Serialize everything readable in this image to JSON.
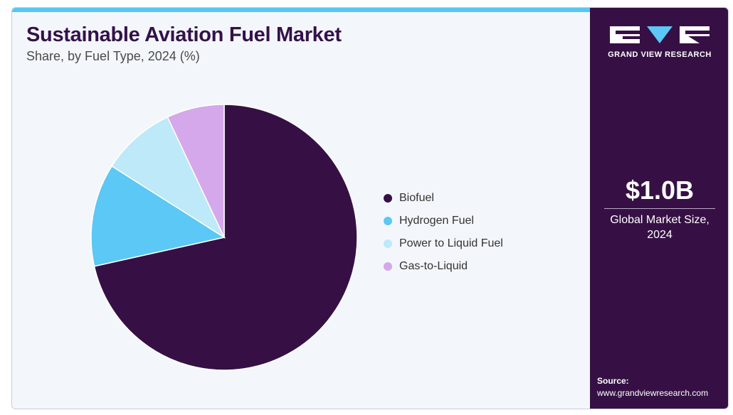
{
  "chart_data": {
    "type": "pie",
    "title": "Sustainable Aviation Fuel Market",
    "subtitle": "Share, by Fuel Type, 2024 (%)",
    "categories": [
      "Biofuel",
      "Hydrogen Fuel",
      "Power to Liquid Fuel",
      "Gas-to-Liquid"
    ],
    "values": [
      71.5,
      12.5,
      9.0,
      7.0
    ],
    "colors": [
      "#361045",
      "#5bc8f5",
      "#bde9f9",
      "#d4a8ea"
    ],
    "legend_position": "right"
  },
  "sidebar": {
    "brand": "GRAND VIEW RESEARCH",
    "market_value": "$1.0B",
    "market_label": "Global Market Size, 2024",
    "source_label": "Source:",
    "source_url": "www.grandviewresearch.com"
  }
}
